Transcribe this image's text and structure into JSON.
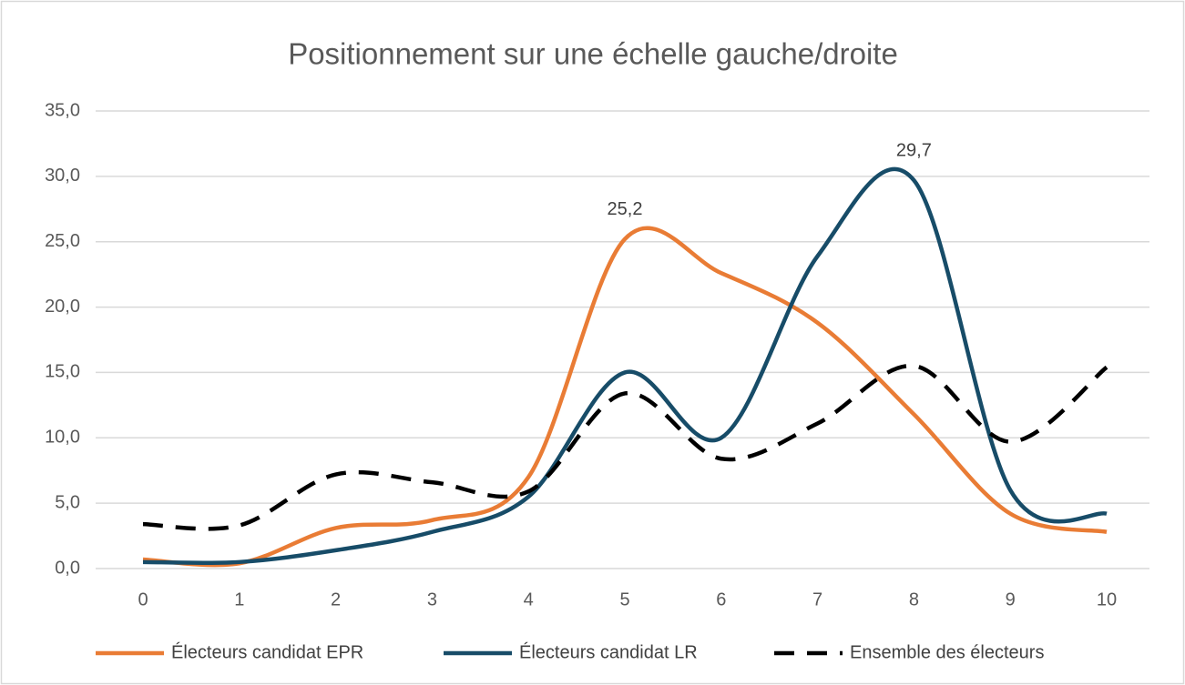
{
  "chart_data": {
    "type": "line",
    "title": "Positionnement sur une échelle gauche/droite",
    "categories": [
      "0",
      "1",
      "2",
      "3",
      "4",
      "5",
      "6",
      "7",
      "8",
      "9",
      "10"
    ],
    "series": [
      {
        "name": "Électeurs candidat EPR",
        "color": "#e97c35",
        "dash": false,
        "values": [
          0.7,
          0.4,
          3.1,
          3.7,
          7.0,
          25.2,
          22.6,
          18.8,
          11.8,
          4.2,
          2.8
        ],
        "value_labels": [
          null,
          null,
          null,
          null,
          null,
          "25,2",
          null,
          null,
          null,
          null,
          null
        ]
      },
      {
        "name": "Électeurs candidat LR",
        "color": "#174c68",
        "dash": false,
        "values": [
          0.5,
          0.5,
          1.4,
          2.8,
          5.5,
          15.0,
          10.0,
          23.9,
          29.7,
          6.0,
          4.2
        ],
        "value_labels": [
          null,
          null,
          null,
          null,
          null,
          null,
          null,
          null,
          "29,7",
          null,
          null
        ]
      },
      {
        "name": "Ensemble des électeurs",
        "color": "#000000",
        "dash": true,
        "values": [
          3.4,
          3.3,
          7.2,
          6.6,
          5.9,
          13.4,
          8.4,
          11.1,
          15.5,
          9.7,
          15.4
        ],
        "value_labels": [
          null,
          null,
          null,
          null,
          null,
          null,
          null,
          null,
          null,
          null,
          null
        ]
      }
    ],
    "ylim": [
      0,
      35
    ],
    "yticks": [
      {
        "value": 0,
        "label": "0,0"
      },
      {
        "value": 5,
        "label": "5,0"
      },
      {
        "value": 10,
        "label": "10,0"
      },
      {
        "value": 15,
        "label": "15,0"
      },
      {
        "value": 20,
        "label": "20,0"
      },
      {
        "value": 25,
        "label": "25,0"
      },
      {
        "value": 30,
        "label": "30,0"
      },
      {
        "value": 35,
        "label": "35,0"
      }
    ],
    "grid": true,
    "smooth": true,
    "legend": "bottom"
  }
}
